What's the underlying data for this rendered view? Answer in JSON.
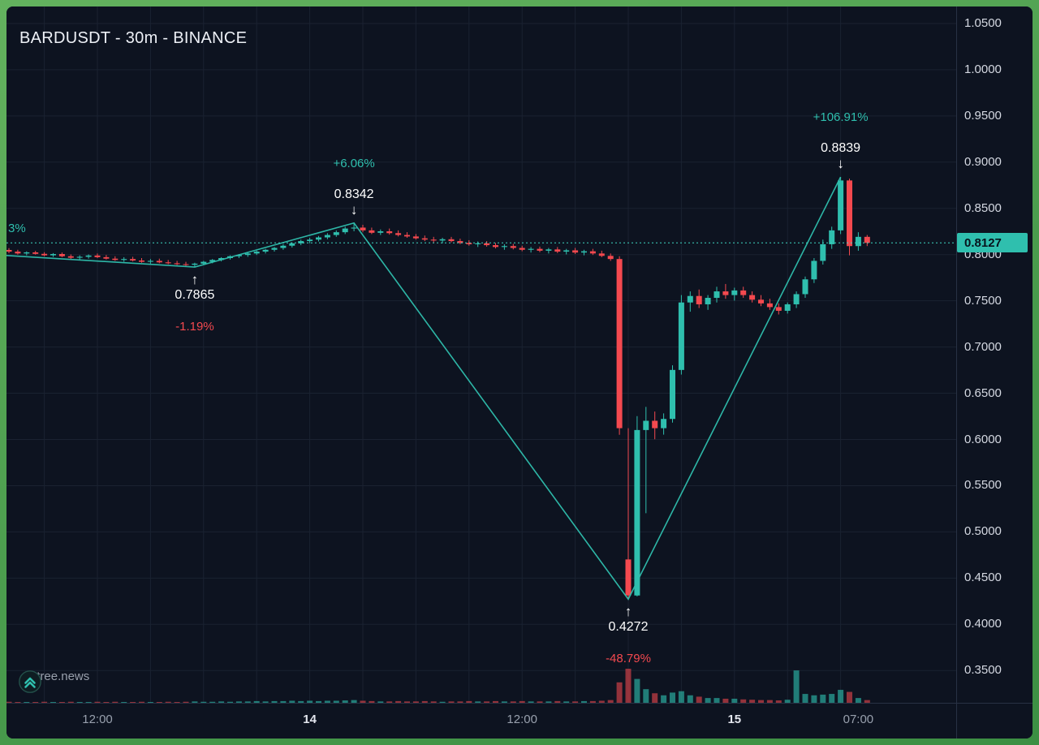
{
  "header": {
    "title": "BARDUSDT - 30m - BINANCE"
  },
  "watermark": {
    "label": "© tree.news"
  },
  "price_axis": {
    "current_price": "0.8127"
  },
  "chart_data": {
    "type": "candlestick",
    "symbol": "BARDUSDT",
    "interval": "30m",
    "exchange": "BINANCE",
    "title": "BARDUSDT - 30m - BINANCE",
    "colors": {
      "up": "#2fbfae",
      "down": "#f4494f",
      "zigzag": "#2fbfae",
      "current_price_line": "#3fd6c2",
      "current_price_tag_bg": "#2fbfae",
      "background": "#0d1320",
      "grid": "#1a2231",
      "frame_green": "#4a9c4d"
    },
    "y_range": [
      0.3151,
      1.0684
    ],
    "price_ticks": [
      "1.0500",
      "1.0000",
      "0.9500",
      "0.9000",
      "0.8500",
      "0.8000",
      "0.7500",
      "0.7000",
      "0.6500",
      "0.6000",
      "0.5500",
      "0.5000",
      "0.4500",
      "0.4000",
      "0.3500"
    ],
    "current_price": 0.8127,
    "time_labels": [
      {
        "text": "12:00",
        "index": 10,
        "major": false
      },
      {
        "text": "14",
        "index": 34,
        "major": true
      },
      {
        "text": "12:00",
        "index": 58,
        "major": false
      },
      {
        "text": "15",
        "index": 82,
        "major": true
      },
      {
        "text": "07:00",
        "index": 96,
        "major": false
      }
    ],
    "candles": [
      [
        0.805,
        0.807,
        0.8015,
        0.8032,
        3
      ],
      [
        0.8032,
        0.8052,
        0.8,
        0.8012,
        2
      ],
      [
        0.8012,
        0.8035,
        0.7992,
        0.8024,
        2
      ],
      [
        0.8024,
        0.804,
        0.8,
        0.8008,
        2
      ],
      [
        0.8008,
        0.8026,
        0.7982,
        0.7992,
        3
      ],
      [
        0.7992,
        0.8016,
        0.7976,
        0.8006,
        2
      ],
      [
        0.8006,
        0.8022,
        0.7972,
        0.7982,
        2
      ],
      [
        0.7982,
        0.8002,
        0.7952,
        0.7966,
        3
      ],
      [
        0.7966,
        0.7992,
        0.7942,
        0.7976,
        2
      ],
      [
        0.7976,
        0.8002,
        0.7956,
        0.799,
        2
      ],
      [
        0.799,
        0.8012,
        0.7962,
        0.7972,
        3
      ],
      [
        0.7972,
        0.7996,
        0.7946,
        0.7956,
        2
      ],
      [
        0.7956,
        0.7982,
        0.7932,
        0.7942,
        3
      ],
      [
        0.7942,
        0.7972,
        0.7922,
        0.7952,
        2
      ],
      [
        0.7952,
        0.7976,
        0.7926,
        0.7936,
        2
      ],
      [
        0.7936,
        0.7962,
        0.7912,
        0.7922,
        3
      ],
      [
        0.7922,
        0.7952,
        0.7902,
        0.7932,
        2
      ],
      [
        0.7932,
        0.7956,
        0.7906,
        0.7916,
        2
      ],
      [
        0.7916,
        0.7942,
        0.7896,
        0.7906,
        3
      ],
      [
        0.7906,
        0.7932,
        0.7886,
        0.7896,
        2
      ],
      [
        0.7896,
        0.7922,
        0.7876,
        0.789,
        3
      ],
      [
        0.789,
        0.7912,
        0.7865,
        0.7902,
        4
      ],
      [
        0.7902,
        0.7932,
        0.7892,
        0.7922,
        3
      ],
      [
        0.7922,
        0.7952,
        0.7906,
        0.7942,
        3
      ],
      [
        0.7942,
        0.7972,
        0.7926,
        0.7962,
        4
      ],
      [
        0.7962,
        0.7992,
        0.7946,
        0.7982,
        3
      ],
      [
        0.7982,
        0.8006,
        0.7962,
        0.7996,
        4
      ],
      [
        0.7996,
        0.8022,
        0.7976,
        0.8012,
        4
      ],
      [
        0.8012,
        0.8042,
        0.7996,
        0.8032,
        5
      ],
      [
        0.8032,
        0.8062,
        0.8012,
        0.8052,
        4
      ],
      [
        0.8052,
        0.8082,
        0.8032,
        0.8072,
        5
      ],
      [
        0.8072,
        0.8112,
        0.8052,
        0.8096,
        5
      ],
      [
        0.8096,
        0.8132,
        0.8076,
        0.8122,
        6
      ],
      [
        0.8122,
        0.8162,
        0.8102,
        0.8146,
        5
      ],
      [
        0.8146,
        0.8182,
        0.8122,
        0.8162,
        6
      ],
      [
        0.8162,
        0.8202,
        0.8142,
        0.8186,
        5
      ],
      [
        0.8186,
        0.8232,
        0.8166,
        0.8212,
        6
      ],
      [
        0.8212,
        0.8262,
        0.8192,
        0.8242,
        6
      ],
      [
        0.8242,
        0.8302,
        0.8222,
        0.8282,
        7
      ],
      [
        0.8282,
        0.8342,
        0.8252,
        0.8292,
        8
      ],
      [
        0.8292,
        0.8322,
        0.8242,
        0.8262,
        6
      ],
      [
        0.8262,
        0.8292,
        0.8222,
        0.8236,
        5
      ],
      [
        0.8236,
        0.8272,
        0.8212,
        0.8252,
        4
      ],
      [
        0.8252,
        0.8282,
        0.8216,
        0.8232,
        4
      ],
      [
        0.8232,
        0.8262,
        0.8196,
        0.8212,
        5
      ],
      [
        0.8212,
        0.8242,
        0.8182,
        0.8196,
        4
      ],
      [
        0.8196,
        0.8222,
        0.8162,
        0.8176,
        4
      ],
      [
        0.8176,
        0.8206,
        0.8146,
        0.8162,
        5
      ],
      [
        0.8162,
        0.8192,
        0.8132,
        0.8152,
        4
      ],
      [
        0.8152,
        0.8182,
        0.8122,
        0.8166,
        3
      ],
      [
        0.8166,
        0.8192,
        0.8132,
        0.8146,
        4
      ],
      [
        0.8146,
        0.8172,
        0.8112,
        0.8126,
        4
      ],
      [
        0.8126,
        0.8156,
        0.8096,
        0.8112,
        5
      ],
      [
        0.8112,
        0.8142,
        0.8082,
        0.8122,
        4
      ],
      [
        0.8122,
        0.8146,
        0.8086,
        0.8102,
        4
      ],
      [
        0.8102,
        0.8126,
        0.8066,
        0.8082,
        5
      ],
      [
        0.8082,
        0.8112,
        0.8052,
        0.8092,
        4
      ],
      [
        0.8092,
        0.8116,
        0.8056,
        0.8072,
        4
      ],
      [
        0.8072,
        0.8096,
        0.8036,
        0.8052,
        5
      ],
      [
        0.8052,
        0.8082,
        0.8022,
        0.8062,
        4
      ],
      [
        0.8062,
        0.8086,
        0.8026,
        0.8042,
        4
      ],
      [
        0.8042,
        0.8072,
        0.8012,
        0.8056,
        4
      ],
      [
        0.8056,
        0.8082,
        0.8016,
        0.8032,
        5
      ],
      [
        0.8032,
        0.8062,
        0.8002,
        0.8046,
        4
      ],
      [
        0.8046,
        0.8072,
        0.8006,
        0.8022,
        4
      ],
      [
        0.8022,
        0.8052,
        0.7992,
        0.8036,
        5
      ],
      [
        0.8036,
        0.8062,
        0.7996,
        0.8012,
        5
      ],
      [
        0.8012,
        0.8042,
        0.7972,
        0.7986,
        6
      ],
      [
        0.7986,
        0.8012,
        0.7932,
        0.7952,
        8
      ],
      [
        0.7952,
        0.7982,
        0.605,
        0.6122,
        60
      ],
      [
        0.4702,
        0.6122,
        0.4272,
        0.4312,
        100
      ],
      [
        0.4312,
        0.6252,
        0.4302,
        0.6102,
        70
      ],
      [
        0.6102,
        0.6352,
        0.5202,
        0.6202,
        40
      ],
      [
        0.6202,
        0.6302,
        0.6002,
        0.6122,
        28
      ],
      [
        0.6122,
        0.6282,
        0.6052,
        0.6222,
        22
      ],
      [
        0.6222,
        0.6802,
        0.6182,
        0.6752,
        30
      ],
      [
        0.6752,
        0.7562,
        0.6702,
        0.7482,
        34
      ],
      [
        0.7482,
        0.7602,
        0.7382,
        0.7552,
        22
      ],
      [
        0.7552,
        0.7622,
        0.7422,
        0.7462,
        18
      ],
      [
        0.7462,
        0.7562,
        0.7402,
        0.7532,
        14
      ],
      [
        0.7532,
        0.7652,
        0.7482,
        0.7602,
        14
      ],
      [
        0.7602,
        0.7682,
        0.7522,
        0.7562,
        12
      ],
      [
        0.7562,
        0.7642,
        0.7502,
        0.7612,
        12
      ],
      [
        0.7612,
        0.7652,
        0.7532,
        0.7562,
        10
      ],
      [
        0.7562,
        0.7602,
        0.7482,
        0.7512,
        9
      ],
      [
        0.7512,
        0.7562,
        0.7442,
        0.7472,
        8
      ],
      [
        0.7472,
        0.7522,
        0.7402,
        0.7432,
        8
      ],
      [
        0.7432,
        0.7472,
        0.7352,
        0.7392,
        7
      ],
      [
        0.7392,
        0.7482,
        0.7362,
        0.7462,
        9
      ],
      [
        0.7462,
        0.7602,
        0.7422,
        0.7572,
        95
      ],
      [
        0.7572,
        0.7762,
        0.7532,
        0.7732,
        26
      ],
      [
        0.7732,
        0.7962,
        0.7692,
        0.7932,
        22
      ],
      [
        0.7932,
        0.8162,
        0.7892,
        0.8112,
        24
      ],
      [
        0.8112,
        0.8302,
        0.8062,
        0.8262,
        26
      ],
      [
        0.8262,
        0.8839,
        0.8222,
        0.8802,
        38
      ],
      [
        0.8802,
        0.8822,
        0.7992,
        0.8092,
        32
      ],
      [
        0.8092,
        0.8242,
        0.8042,
        0.8192,
        14
      ],
      [
        0.8192,
        0.8212,
        0.8092,
        0.8127,
        8
      ]
    ],
    "zigzag_points": [
      [
        -1,
        0.7995
      ],
      [
        21,
        0.7865
      ],
      [
        39,
        0.8342
      ],
      [
        70,
        0.4272
      ],
      [
        94,
        0.8839
      ]
    ],
    "annotations": [
      {
        "kind": "swing-low",
        "index": 21,
        "price": 0.7865,
        "price_label": "0.7865",
        "pct_label": "-1.19%"
      },
      {
        "kind": "swing-high",
        "index": 39,
        "price": 0.8342,
        "price_label": "0.8342",
        "pct_label": "+6.06%"
      },
      {
        "kind": "swing-low",
        "index": 70,
        "price": 0.4272,
        "price_label": "0.4272",
        "pct_label": "-48.79%"
      },
      {
        "kind": "swing-high",
        "index": 94,
        "price": 0.8839,
        "price_label": "0.8839",
        "pct_label": "+106.91%"
      },
      {
        "kind": "edge-partial",
        "price": 0.8275,
        "text": "3%"
      }
    ]
  }
}
